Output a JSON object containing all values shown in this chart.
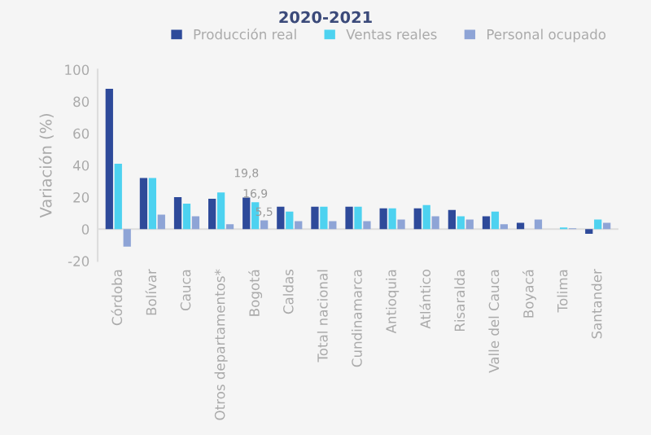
{
  "chart_data": {
    "type": "bar",
    "title": "2020-2021",
    "ylabel": "Variación (%)",
    "categories": [
      "Córdoba",
      "Bolívar",
      "Cauca",
      "Otros departamentos*",
      "Bogotá",
      "Caldas",
      "Total nacional",
      "Cundinamarca",
      "Antioquia",
      "Atlántico",
      "Risaralda",
      "Valle del Cauca",
      "Boyacá",
      "Tolima",
      "Santander"
    ],
    "series": [
      {
        "name": "Producción real",
        "color": "#2e4a9a",
        "values": [
          88,
          32,
          20,
          19,
          19.8,
          14,
          14,
          14,
          13,
          13,
          12,
          8,
          4,
          0,
          -3
        ],
        "value_labels": [
          null,
          null,
          null,
          null,
          "19,8",
          null,
          null,
          null,
          null,
          null,
          null,
          null,
          null,
          null,
          null
        ]
      },
      {
        "name": "Ventas reales",
        "color": "#4dd2f0",
        "values": [
          41,
          32,
          16,
          23,
          16.9,
          11,
          14,
          14,
          13,
          15,
          8,
          11,
          0,
          1,
          6
        ],
        "value_labels": [
          null,
          null,
          null,
          null,
          "16,9",
          null,
          null,
          null,
          null,
          null,
          null,
          null,
          null,
          null,
          null
        ]
      },
      {
        "name": "Personal ocupado",
        "color": "#8ea4d6",
        "values": [
          -11,
          9,
          8,
          3,
          5.5,
          5,
          5,
          5,
          6,
          8,
          6,
          3,
          6,
          0.5,
          4
        ],
        "value_labels": [
          null,
          null,
          null,
          null,
          "5,5",
          null,
          null,
          null,
          null,
          null,
          null,
          null,
          null,
          null,
          null
        ]
      }
    ],
    "ylim": [
      -20,
      100
    ],
    "yticks": [
      {
        "value": -20,
        "label": "-20"
      },
      0,
      20,
      40,
      60,
      80,
      100
    ],
    "ref_lines": [
      {
        "axis": "y",
        "value": 0,
        "color": "#dddddd"
      }
    ],
    "grid": false,
    "legend": "top right"
  }
}
